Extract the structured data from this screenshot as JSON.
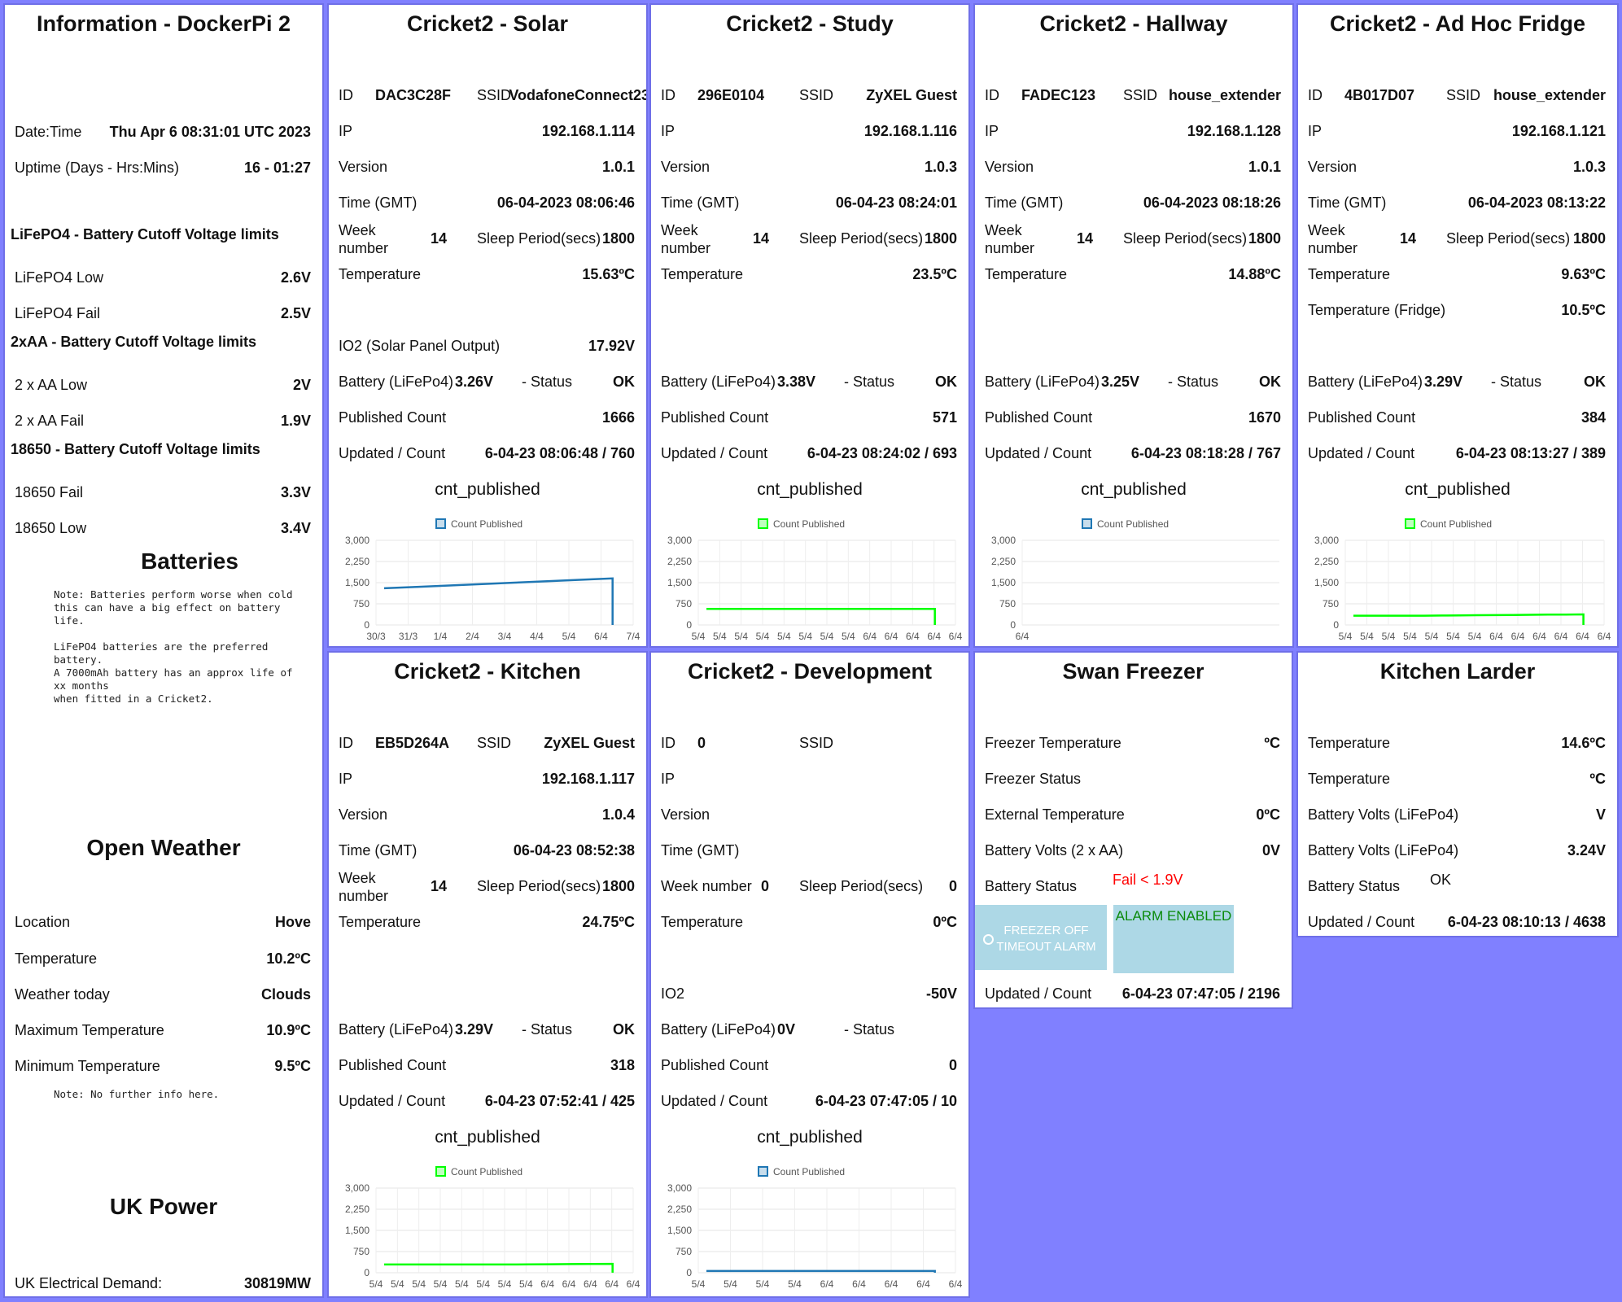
{
  "info": {
    "title": "Information - DockerPi 2",
    "rows": [
      {
        "label": "Date:Time",
        "value": "Thu Apr 6 08:31:01 UTC 2023"
      },
      {
        "label": "Uptime (Days - Hrs:Mins)",
        "value": "16 - 01:27"
      }
    ],
    "lifepo4_heading": "LiFePO4 - Battery Cutoff Voltage limits",
    "lifepo4": [
      {
        "label": "LiFePO4 Low",
        "value": "2.6V"
      },
      {
        "label": "LiFePO4 Fail",
        "value": "2.5V"
      }
    ],
    "aa_heading": "2xAA - Battery Cutoff Voltage limits",
    "aa": [
      {
        "label": "2 x AA Low",
        "value": "2V"
      },
      {
        "label": "2 x AA Fail",
        "value": "1.9V"
      }
    ],
    "b18650_heading": "18650 - Battery Cutoff Voltage limits",
    "b18650": [
      {
        "label": "18650 Fail",
        "value": "3.3V"
      },
      {
        "label": "18650 Low",
        "value": "3.4V"
      }
    ],
    "batteries_title": "Batteries",
    "batteries_note": "Note: Batteries perform worse when cold\nthis can have a big effect on battery\nlife.\n\nLiFePO4 batteries are the preferred\nbattery.\nA 7000mAh battery has an approx life of\nxx months\nwhen fitted in a Cricket2.",
    "weather_title": "Open Weather",
    "weather": [
      {
        "label": "Location",
        "value": "Hove"
      },
      {
        "label": "Temperature",
        "value": "10.2ºC"
      },
      {
        "label": "Weather today",
        "value": "Clouds"
      },
      {
        "label": "Maximum Temperature",
        "value": "10.9ºC"
      },
      {
        "label": "Minimum Temperature",
        "value": "9.5ºC"
      }
    ],
    "weather_note": "Note: No further info here.",
    "power_title": "UK Power",
    "power": {
      "label": "UK Electrical Demand:",
      "value": "30819MW"
    }
  },
  "labels": {
    "id": "ID",
    "ssid": "SSID",
    "ip": "IP",
    "version": "Version",
    "time": "Time (GMT)",
    "week": "Week number",
    "week1": "Week",
    "week2": "number",
    "sleep": "Sleep Period(secs)",
    "temperature": "Temperature",
    "battery": "Battery (LiFePo4)",
    "status": "- Status",
    "published": "Published Count",
    "updated": "Updated / Count",
    "io2_solar": "IO2 (Solar Panel Output)",
    "io2": "IO2",
    "temp_fridge": "Temperature (Fridge)",
    "cnt_published": "cnt_published",
    "legend": "Count Published"
  },
  "crickets": {
    "solar": {
      "title": "Cricket2 - Solar",
      "id": "DAC3C28F",
      "ssid": "VodafoneConnect23",
      "ip": "192.168.1.114",
      "version": "1.0.1",
      "time": "06-04-2023 08:06:46",
      "week": "14",
      "sleep": "1800",
      "temperature": "15.63ºC",
      "io2": "17.92V",
      "battery": "3.26V",
      "status": "OK",
      "published": "1666",
      "updated": "6-04-23 08:06:48 / 760"
    },
    "study": {
      "title": "Cricket2 - Study",
      "id": "296E0104",
      "ssid": "ZyXEL Guest",
      "ip": "192.168.1.116",
      "version": "1.0.3",
      "time": "06-04-23 08:24:01",
      "week": "14",
      "sleep": "1800",
      "temperature": "23.5ºC",
      "battery": "3.38V",
      "status": "OK",
      "published": "571",
      "updated": "6-04-23 08:24:02 / 693"
    },
    "hallway": {
      "title": "Cricket2 - Hallway",
      "id": "FADEC123",
      "ssid": "house_extender",
      "ip": "192.168.1.128",
      "version": "1.0.1",
      "time": "06-04-2023 08:18:26",
      "week": "14",
      "sleep": "1800",
      "temperature": "14.88ºC",
      "battery": "3.25V",
      "status": "OK",
      "published": "1670",
      "updated": "6-04-23 08:18:28 / 767"
    },
    "fridge": {
      "title": "Cricket2 - Ad Hoc Fridge",
      "id": "4B017D07",
      "ssid": "house_extender",
      "ip": "192.168.1.121",
      "version": "1.0.3",
      "time": "06-04-2023 08:13:22",
      "week": "14",
      "sleep": "1800",
      "temperature": "9.63ºC",
      "temp_fridge": "10.5ºC",
      "battery": "3.29V",
      "status": "OK",
      "published": "384",
      "updated": "6-04-23 08:13:27 / 389"
    },
    "kitchen": {
      "title": "Cricket2 - Kitchen",
      "id": "EB5D264A",
      "ssid": "ZyXEL Guest",
      "ip": "192.168.1.117",
      "version": "1.0.4",
      "time": "06-04-23 08:52:38",
      "week": "14",
      "sleep": "1800",
      "temperature": "24.75ºC",
      "battery": "3.29V",
      "status": "OK",
      "published": "318",
      "updated": "6-04-23 07:52:41 / 425"
    },
    "dev": {
      "title": "Cricket2 - Development",
      "id": "0",
      "ssid": "",
      "ip": "",
      "version": "",
      "time": "",
      "week": "0",
      "sleep": "0",
      "temperature": "0ºC",
      "io2": "-50V",
      "battery": "0V",
      "status": "",
      "published": "0",
      "updated": "6-04-23 07:47:05 / 10"
    }
  },
  "freezer": {
    "title": "Swan Freezer",
    "rows": [
      {
        "label": "Freezer Temperature",
        "value": "ºC"
      },
      {
        "label": "Freezer Status",
        "value": ""
      },
      {
        "label": "External Temperature",
        "value": "0ºC"
      },
      {
        "label": "Battery Volts (2 x AA)",
        "value": "0V"
      }
    ],
    "battery_status_label": "Battery Status",
    "battery_status": "Fail < 1.9V",
    "btn_off": "FREEZER OFF TIMEOUT ALARM",
    "btn_alarm": "ALARM ENABLED",
    "updated_label": "Updated / Count",
    "updated": "6-04-23 07:47:05 / 2196"
  },
  "larder": {
    "title": "Kitchen Larder",
    "rows": [
      {
        "label": "Temperature",
        "value": "14.6ºC"
      },
      {
        "label": "Temperature",
        "value": "ºC"
      },
      {
        "label": "Battery Volts (LiFePo4)",
        "value": "V"
      },
      {
        "label": "Battery Volts (LiFePo4)",
        "value": "3.24V"
      }
    ],
    "battery_status_label": "Battery Status",
    "battery_status": "OK",
    "updated_label": "Updated / Count",
    "updated": "6-04-23 08:10:13 / 4638"
  },
  "colors": {
    "page": "#8080ff",
    "blue_series": "#1f77b4",
    "green_series": "#00ff00",
    "alert": "#ff0000",
    "alarm_text": "#0a8a0a"
  },
  "chart_data": [
    {
      "name": "solar",
      "type": "line",
      "title": "cnt_published",
      "series": [
        {
          "name": "Count Published",
          "color": "#1f77b4",
          "x": [
            "30/3",
            "31/3",
            "1/4",
            "2/4",
            "3/4",
            "4/4",
            "5/4",
            "6/4"
          ],
          "values": [
            1300,
            1350,
            1400,
            1450,
            1500,
            1550,
            1600,
            1650
          ]
        }
      ],
      "ylim": [
        0,
        3000
      ],
      "yticks": [
        "3,000",
        "2,250",
        "1,500",
        "750",
        "0"
      ],
      "xticks": [
        "30/3",
        "31/3",
        "1/4",
        "2/4",
        "3/4",
        "4/4",
        "5/4",
        "6/4",
        "7/4"
      ]
    },
    {
      "name": "study",
      "type": "line",
      "title": "cnt_published",
      "series": [
        {
          "name": "Count Published",
          "color": "#00ff00",
          "values": [
            571,
            571,
            571,
            571,
            571,
            571,
            571,
            571,
            571,
            571,
            571,
            571
          ]
        }
      ],
      "ylim": [
        0,
        3000
      ],
      "yticks": [
        "3,000",
        "2,250",
        "1,500",
        "750",
        "0"
      ],
      "xticks": [
        "5/4",
        "5/4",
        "5/4",
        "5/4",
        "5/4",
        "5/4",
        "5/4",
        "5/4",
        "6/4",
        "6/4",
        "6/4",
        "6/4",
        "6/4"
      ]
    },
    {
      "name": "hallway",
      "type": "line",
      "title": "cnt_published",
      "series": [
        {
          "name": "Count Published",
          "color": "#1f77b4",
          "values": []
        }
      ],
      "ylim": [
        0,
        3000
      ],
      "yticks": [
        "3,000",
        "2,250",
        "1,500",
        "750",
        "0"
      ],
      "xticks": [
        "6/4"
      ]
    },
    {
      "name": "fridge",
      "type": "line",
      "title": "cnt_published",
      "series": [
        {
          "name": "Count Published",
          "color": "#00ff00",
          "values": [
            330,
            330,
            330,
            330,
            330,
            335,
            340,
            345,
            350,
            355,
            360,
            365,
            370,
            375
          ]
        }
      ],
      "ylim": [
        0,
        3000
      ],
      "yticks": [
        "3,000",
        "2,250",
        "1,500",
        "750",
        "0"
      ],
      "xticks": [
        "5/4",
        "5/4",
        "5/4",
        "5/4",
        "5/4",
        "5/4",
        "5/4",
        "6/4",
        "6/4",
        "6/4",
        "6/4",
        "6/4",
        "6/4"
      ]
    },
    {
      "name": "kitchen",
      "type": "line",
      "title": "cnt_published",
      "series": [
        {
          "name": "Count Published",
          "color": "#00ff00",
          "values": [
            290,
            290,
            290,
            290,
            290,
            290,
            290,
            295,
            300,
            305,
            310,
            315
          ]
        }
      ],
      "ylim": [
        0,
        3000
      ],
      "yticks": [
        "3,000",
        "2,250",
        "1,500",
        "750",
        "0"
      ],
      "xticks": [
        "5/4",
        "5/4",
        "5/4",
        "5/4",
        "5/4",
        "5/4",
        "5/4",
        "5/4",
        "6/4",
        "6/4",
        "6/4",
        "6/4",
        "6/4"
      ]
    },
    {
      "name": "dev",
      "type": "line",
      "title": "cnt_published",
      "series": [
        {
          "name": "Count Published",
          "color": "#1f77b4",
          "values": [
            60,
            60,
            60,
            60,
            60,
            60,
            60,
            60,
            60
          ]
        }
      ],
      "ylim": [
        0,
        3000
      ],
      "yticks": [
        "3,000",
        "2,250",
        "1,500",
        "750",
        "0"
      ],
      "xticks": [
        "5/4",
        "5/4",
        "5/4",
        "5/4",
        "6/4",
        "6/4",
        "6/4",
        "6/4",
        "6/4"
      ]
    }
  ]
}
